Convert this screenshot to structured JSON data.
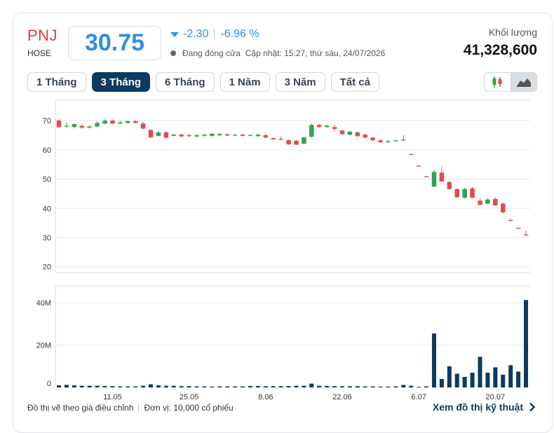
{
  "quote": {
    "symbol": "PNJ",
    "exchange": "HOSE",
    "price": "30.75",
    "change": "-2.30",
    "change_pct": "-6.96 %",
    "status": "Đang đóng cửa",
    "updated": "Cập nhật: 15:27, thứ sáu, 24/07/2026",
    "volume_label": "Khối lượng",
    "volume": "41,328,600"
  },
  "tabs": [
    "1 Tháng",
    "3 Tháng",
    "6 Tháng",
    "1 Năm",
    "3 Năm",
    "Tất cả"
  ],
  "active_tab": 1,
  "view_toggle": [
    "candlestick-icon",
    "area-chart-icon"
  ],
  "active_view": 1,
  "colors": {
    "up": "#2ea44f",
    "down": "#e34b4b",
    "volume": "#0e3a5f",
    "price": "#2e8fde",
    "symbol": "#e03a3e"
  },
  "chart_data": {
    "type": "candlestick",
    "price_axis": {
      "ticks": [
        20,
        30,
        40,
        50,
        60,
        70
      ],
      "ylim": [
        18,
        77
      ]
    },
    "volume_axis": {
      "ticks": [
        0,
        20,
        40
      ],
      "tick_labels": [
        "0",
        "20M",
        "40M"
      ],
      "ylim": [
        0,
        48
      ]
    },
    "x_tick_labels": [
      {
        "label": "11.05",
        "index": 7
      },
      {
        "label": "25.05",
        "index": 17
      },
      {
        "label": "8.06",
        "index": 27
      },
      {
        "label": "22.06",
        "index": 37
      },
      {
        "label": "6.07",
        "index": 47
      },
      {
        "label": "20.07",
        "index": 57
      }
    ],
    "candles": [
      {
        "o": 70.0,
        "h": 70.5,
        "c": 67.8,
        "l": 67.5
      },
      {
        "o": 68.0,
        "h": 69.5,
        "c": 68.3,
        "l": 67.5
      },
      {
        "o": 67.8,
        "h": 69.0,
        "c": 68.8,
        "l": 67.3
      },
      {
        "o": 68.2,
        "h": 68.8,
        "c": 67.6,
        "l": 67.2
      },
      {
        "o": 67.6,
        "h": 68.4,
        "c": 68.0,
        "l": 67.3
      },
      {
        "o": 68.0,
        "h": 69.8,
        "c": 69.2,
        "l": 67.8
      },
      {
        "o": 69.0,
        "h": 70.5,
        "c": 70.0,
        "l": 68.8
      },
      {
        "o": 70.0,
        "h": 70.4,
        "c": 69.0,
        "l": 68.8
      },
      {
        "o": 69.0,
        "h": 70.0,
        "c": 69.4,
        "l": 68.8
      },
      {
        "o": 69.2,
        "h": 70.0,
        "c": 69.8,
        "l": 69.0
      },
      {
        "o": 69.8,
        "h": 70.2,
        "c": 69.2,
        "l": 69.0
      },
      {
        "o": 69.0,
        "h": 69.5,
        "c": 67.3,
        "l": 67.0
      },
      {
        "o": 66.8,
        "h": 67.0,
        "c": 64.3,
        "l": 64.0
      },
      {
        "o": 64.8,
        "h": 66.5,
        "c": 66.0,
        "l": 64.6
      },
      {
        "o": 66.0,
        "h": 66.4,
        "c": 64.2,
        "l": 63.8
      },
      {
        "o": 64.8,
        "h": 65.6,
        "c": 65.2,
        "l": 64.6
      },
      {
        "o": 65.2,
        "h": 65.6,
        "c": 64.6,
        "l": 64.3
      },
      {
        "o": 65.0,
        "h": 65.5,
        "c": 64.7,
        "l": 64.3
      },
      {
        "o": 64.6,
        "h": 65.5,
        "c": 65.0,
        "l": 64.2
      },
      {
        "o": 64.8,
        "h": 65.4,
        "c": 65.2,
        "l": 64.5
      },
      {
        "o": 64.8,
        "h": 65.6,
        "c": 65.5,
        "l": 64.5
      },
      {
        "o": 65.0,
        "h": 65.8,
        "c": 65.4,
        "l": 64.7
      },
      {
        "o": 65.3,
        "h": 65.8,
        "c": 64.9,
        "l": 64.7
      },
      {
        "o": 64.9,
        "h": 65.4,
        "c": 65.2,
        "l": 64.6
      },
      {
        "o": 65.2,
        "h": 65.5,
        "c": 64.8,
        "l": 64.5
      },
      {
        "o": 64.9,
        "h": 65.3,
        "c": 65.1,
        "l": 64.6
      },
      {
        "o": 64.7,
        "h": 65.7,
        "c": 65.2,
        "l": 64.4
      },
      {
        "o": 65.0,
        "h": 65.4,
        "c": 64.2,
        "l": 64.0
      },
      {
        "o": 64.0,
        "h": 64.3,
        "c": 63.6,
        "l": 63.4
      },
      {
        "o": 63.8,
        "h": 64.5,
        "c": 63.6,
        "l": 63.3
      },
      {
        "o": 63.3,
        "h": 63.6,
        "c": 61.9,
        "l": 61.7
      },
      {
        "o": 63.1,
        "h": 63.4,
        "c": 61.8,
        "l": 61.6
      },
      {
        "o": 62.1,
        "h": 64.5,
        "c": 64.3,
        "l": 61.9
      },
      {
        "o": 64.5,
        "h": 69.0,
        "c": 68.5,
        "l": 64.2
      },
      {
        "o": 68.5,
        "h": 68.9,
        "c": 67.8,
        "l": 67.5
      },
      {
        "o": 67.8,
        "h": 68.6,
        "c": 68.3,
        "l": 67.6
      },
      {
        "o": 67.8,
        "h": 68.6,
        "c": 67.2,
        "l": 66.5
      },
      {
        "o": 66.6,
        "h": 67.0,
        "c": 65.4,
        "l": 65.2
      },
      {
        "o": 65.2,
        "h": 66.6,
        "c": 66.2,
        "l": 65.0
      },
      {
        "o": 66.0,
        "h": 66.3,
        "c": 64.7,
        "l": 64.5
      },
      {
        "o": 65.2,
        "h": 65.6,
        "c": 64.2,
        "l": 63.9
      },
      {
        "o": 64.2,
        "h": 64.4,
        "c": 63.3,
        "l": 63.0
      },
      {
        "o": 63.3,
        "h": 63.6,
        "c": 62.6,
        "l": 62.4
      },
      {
        "o": 62.8,
        "h": 63.4,
        "c": 62.9,
        "l": 62.4
      },
      {
        "o": 63.1,
        "h": 63.5,
        "c": 63.2,
        "l": 62.8
      },
      {
        "o": 63.2,
        "h": 65.0,
        "c": 63.5,
        "l": 63.0
      },
      {
        "o": 58.6,
        "h": 58.8,
        "c": 58.4,
        "l": 58.3
      },
      {
        "o": 54.6,
        "h": 54.8,
        "c": 54.4,
        "l": 54.3
      },
      {
        "o": 50.9,
        "h": 51.1,
        "c": 50.7,
        "l": 50.6
      },
      {
        "o": 47.4,
        "h": 53.0,
        "c": 52.4,
        "l": 47.3
      },
      {
        "o": 52.2,
        "h": 54.2,
        "c": 49.2,
        "l": 49.0
      },
      {
        "o": 49.0,
        "h": 49.3,
        "c": 46.6,
        "l": 46.4
      },
      {
        "o": 46.6,
        "h": 46.8,
        "c": 43.8,
        "l": 43.4
      },
      {
        "o": 43.6,
        "h": 47.0,
        "c": 46.6,
        "l": 43.3
      },
      {
        "o": 46.8,
        "h": 47.3,
        "c": 43.6,
        "l": 43.4
      },
      {
        "o": 42.6,
        "h": 43.4,
        "c": 41.2,
        "l": 41.0
      },
      {
        "o": 41.6,
        "h": 43.4,
        "c": 43.0,
        "l": 41.4
      },
      {
        "o": 43.2,
        "h": 43.6,
        "c": 41.0,
        "l": 40.8
      },
      {
        "o": 41.6,
        "h": 42.0,
        "c": 38.6,
        "l": 38.3
      },
      {
        "o": 36.0,
        "h": 36.4,
        "c": 35.7,
        "l": 35.6
      },
      {
        "o": 33.3,
        "h": 33.5,
        "c": 33.1,
        "l": 33.0
      },
      {
        "o": 31.0,
        "h": 32.3,
        "c": 30.75,
        "l": 30.5
      }
    ],
    "volumes": [
      1.0,
      1.2,
      1.0,
      0.8,
      0.8,
      0.8,
      0.7,
      0.6,
      0.5,
      0.5,
      0.5,
      0.8,
      1.5,
      1.0,
      0.8,
      0.8,
      0.6,
      0.6,
      0.5,
      0.5,
      0.4,
      0.5,
      0.5,
      0.5,
      0.5,
      0.7,
      0.7,
      0.6,
      0.6,
      0.6,
      0.7,
      0.8,
      0.8,
      1.8,
      0.8,
      0.7,
      0.6,
      0.6,
      0.6,
      0.6,
      0.5,
      0.5,
      0.4,
      0.4,
      0.5,
      1.2,
      0.8,
      0.3,
      0.5,
      25.5,
      4.0,
      10.0,
      6.5,
      5.0,
      7.0,
      14.5,
      7.0,
      9.5,
      6.0,
      10.5,
      7.5,
      41.3
    ]
  },
  "footer": {
    "adjusted_note": "Đồ thị vẽ theo giá điều chỉnh",
    "unit_note": "Đơn vị: 10,000 cổ phiếu",
    "technical_link": "Xem đồ thị kỹ thuật"
  }
}
